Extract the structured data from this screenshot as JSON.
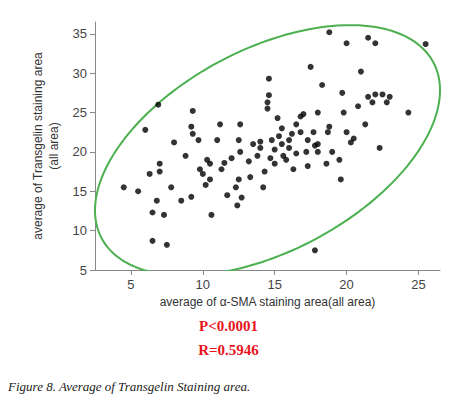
{
  "chart_data": {
    "type": "scatter",
    "x_label": "average of α-SMA staining area(all area)",
    "y_label": "average of Transgelin staining area\n(all area)",
    "annotations": [
      "P<0.0001",
      "R=0.5946"
    ],
    "caption": "Figure 8. Average of Transgelin Staining area.",
    "color": "#000000",
    "marker": "circle",
    "grid": false,
    "xlim": [
      2.5,
      26.5
    ],
    "xticks": [
      5,
      10,
      15,
      20,
      25
    ],
    "ylim": [
      5,
      36.5
    ],
    "yticks": [
      5,
      10,
      15,
      20,
      25,
      30,
      35
    ],
    "x": [
      4.5,
      5.5,
      6,
      6.3,
      6.5,
      6.5,
      6.8,
      6.9,
      7,
      7,
      7.3,
      7.5,
      7.8,
      8,
      8.5,
      8.8,
      9.2,
      9.2,
      9.3,
      9.3,
      9.7,
      9.8,
      10,
      10.3,
      10.2,
      10.5,
      10.6,
      10.5,
      11,
      11.2,
      11.3,
      11.5,
      11.7,
      12,
      12.3,
      12.4,
      12.5,
      12.5,
      12.6,
      12.6,
      12.7,
      13.2,
      13.3,
      13.5,
      13.8,
      14,
      14,
      14.2,
      14.3,
      14.5,
      14.6,
      14.5,
      14.6,
      14.7,
      14.8,
      15,
      15,
      15.2,
      15.3,
      15.5,
      15.5,
      15.6,
      15.8,
      16,
      16,
      16.2,
      16.3,
      16.5,
      16.5,
      16.8,
      16.8,
      17,
      17.2,
      17.3,
      17.3,
      17.5,
      17.7,
      17.8,
      18,
      18,
      17.8,
      18,
      18.3,
      18.6,
      18.7,
      18.8,
      18.8,
      19,
      19.5,
      19.6,
      19.7,
      19.8,
      20,
      20,
      20.3,
      20.5,
      20.8,
      21,
      21.3,
      21.5,
      21.5,
      21.8,
      22,
      22,
      22.3,
      22.5,
      22.8,
      23,
      24.3,
      25.5
    ],
    "values": [
      15.5,
      15,
      22.8,
      17.2,
      8.7,
      12.3,
      13.8,
      26,
      18.5,
      17.5,
      12,
      8.2,
      15.5,
      21.2,
      13.8,
      19.5,
      14.3,
      23.2,
      25.2,
      22.3,
      21.5,
      17.8,
      17.2,
      19,
      15.8,
      18.5,
      12,
      16.5,
      21.5,
      23.5,
      17.8,
      18.6,
      14.5,
      19.2,
      15.5,
      13.2,
      16.5,
      21.5,
      23.5,
      20,
      14.2,
      18.8,
      16.8,
      21,
      19.5,
      20.5,
      21.3,
      15.5,
      17.5,
      25.5,
      27.2,
      26.3,
      29.3,
      19.2,
      21.5,
      20.3,
      18.5,
      24.3,
      22,
      21,
      23,
      19.5,
      19,
      21.5,
      20.5,
      22.3,
      17.8,
      23.5,
      19.8,
      24.5,
      22.5,
      24.8,
      20,
      18.2,
      21.5,
      30.8,
      22.5,
      20.8,
      21,
      20,
      7.5,
      25,
      28.5,
      18.5,
      22.5,
      23.2,
      35.2,
      20,
      19,
      16.5,
      27.5,
      25,
      33.8,
      22.5,
      21.2,
      21.7,
      25.8,
      30.2,
      23.5,
      34.5,
      27,
      26.3,
      33.8,
      27.3,
      20.5,
      27.3,
      26.3,
      27,
      25,
      33.7
    ],
    "ellipse": {
      "center_x": 14.5,
      "center_y": 20.2,
      "half_width": 12,
      "half_height": 15.9,
      "correlation": 0.48,
      "color": "#4cb050"
    }
  }
}
